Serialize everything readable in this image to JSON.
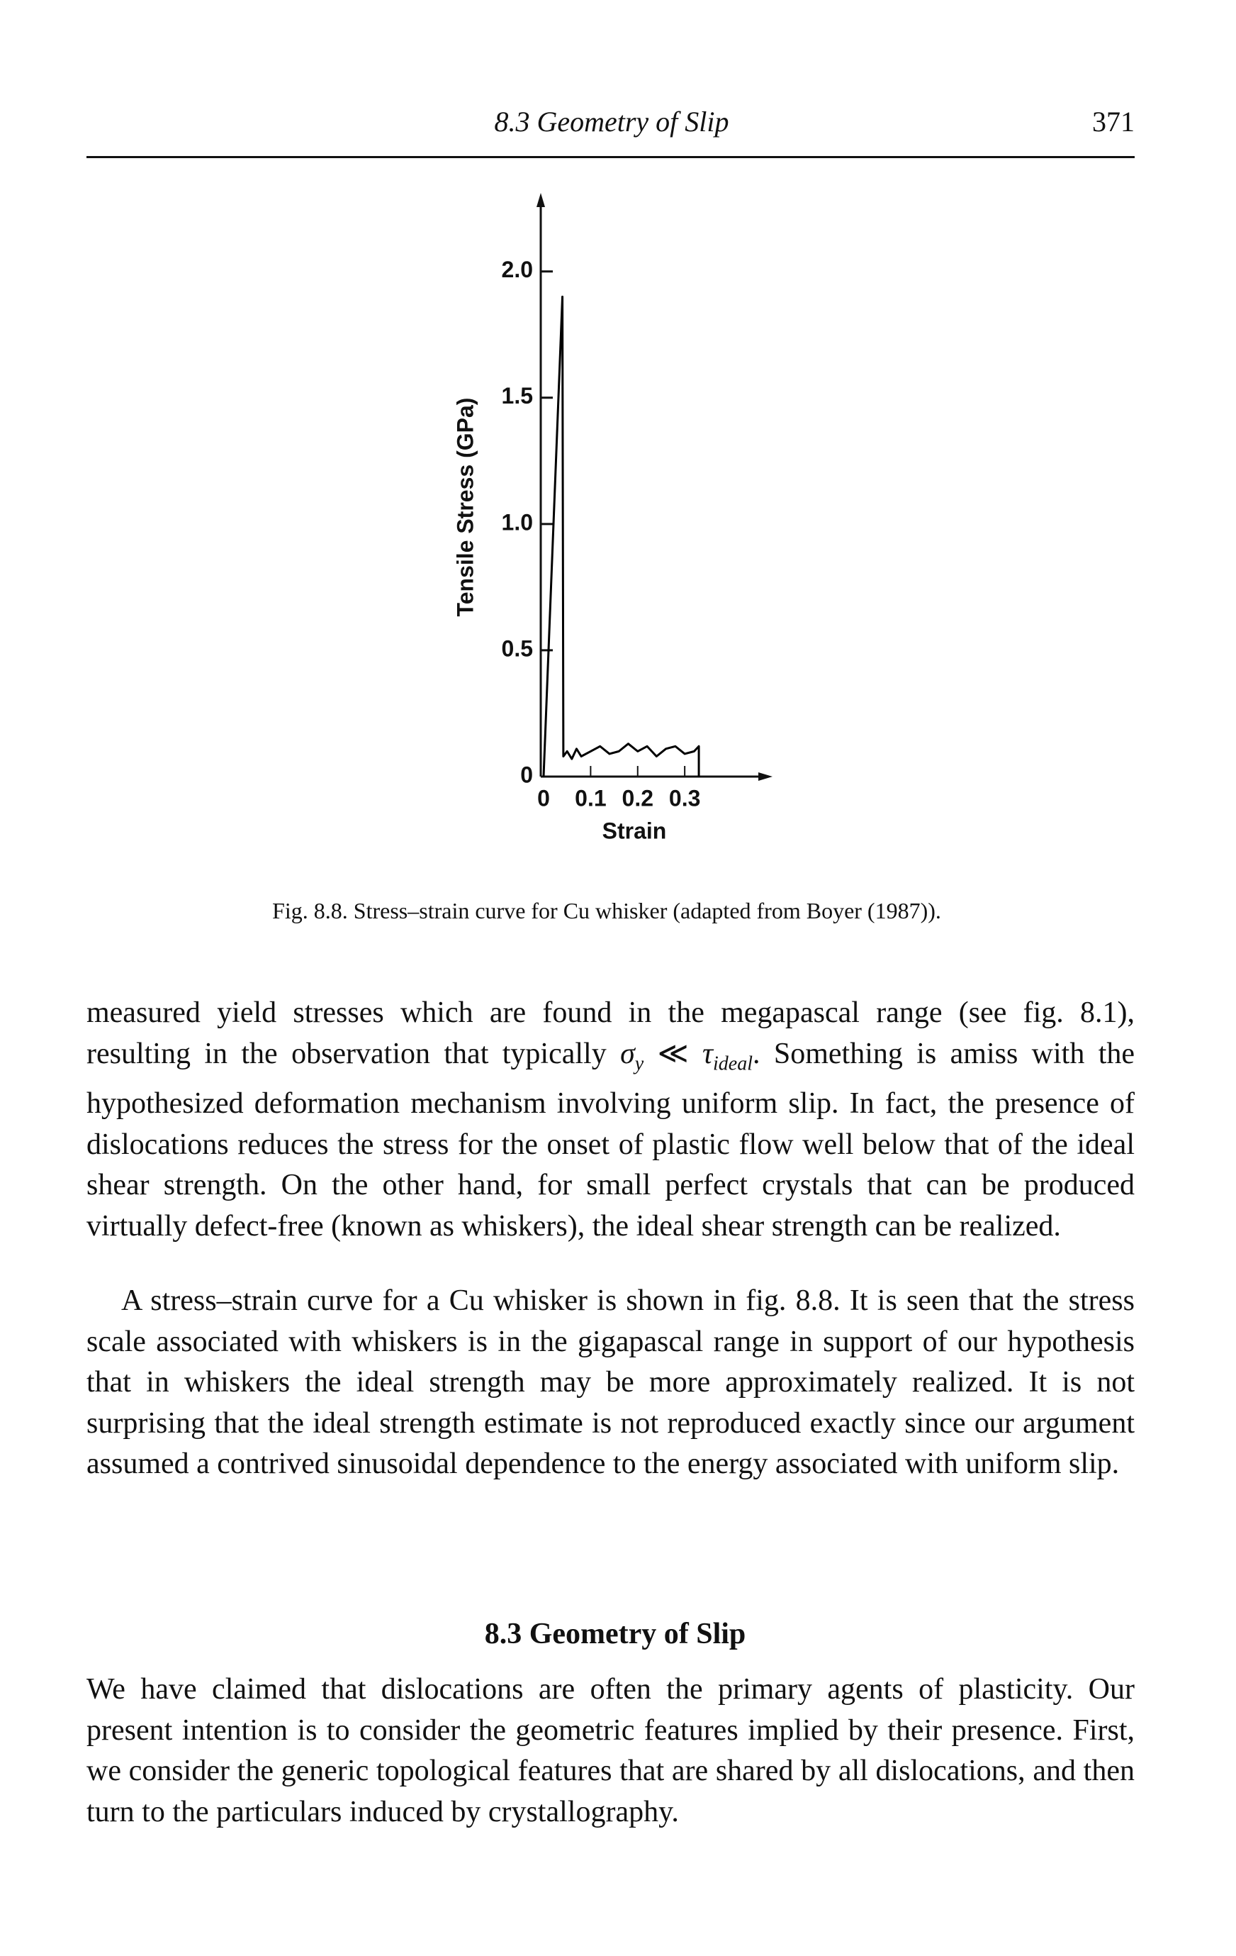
{
  "header": {
    "running_title": "8.3 Geometry of Slip",
    "page_number": "371"
  },
  "chart_data": {
    "type": "line",
    "xlabel": "Strain",
    "ylabel": "Tensile Stress (GPa)",
    "x": [
      0,
      0.04,
      0.042,
      0.05,
      0.06,
      0.07,
      0.08,
      0.1,
      0.12,
      0.14,
      0.16,
      0.18,
      0.2,
      0.22,
      0.24,
      0.26,
      0.28,
      0.3,
      0.32,
      0.33,
      0.33
    ],
    "series": [
      {
        "color": "#000000",
        "values": [
          0,
          1.9,
          0.08,
          0.1,
          0.07,
          0.11,
          0.08,
          0.1,
          0.12,
          0.09,
          0.1,
          0.13,
          0.1,
          0.12,
          0.08,
          0.11,
          0.12,
          0.09,
          0.1,
          0.12,
          0
        ]
      }
    ],
    "xlim": [
      0,
      0.47
    ],
    "ylim": [
      0,
      2.28
    ],
    "xticks": [
      0,
      0.1,
      0.2,
      0.3
    ],
    "yticks": [
      0,
      0.5,
      {
        "value": 1,
        "label": "1.0"
      },
      1.5,
      {
        "value": 2,
        "label": "2.0"
      }
    ]
  },
  "caption": "Fig. 8.8. Stress–strain curve for Cu whisker (adapted from Boyer (1987)).",
  "paragraph_1": {
    "text_1": "measured yield stresses which are found in the megapascal range (see fig. 8.1), resulting in the observation that typically ",
    "symbol_1": "σ",
    "subscript_1": "y",
    "relation": "≪",
    "symbol_2": "τ",
    "subscript_2": "ideal",
    "text_2": ". Something is amiss with the hypothesized deformation mechanism involving uniform slip. In fact, the presence of dislocations reduces the stress for the onset of plastic flow well below that of the ideal shear strength. On the other hand, for small perfect crystals that can be produced virtually defect-free (known as whiskers), the ideal shear strength can be realized."
  },
  "paragraph_2": "A stress–strain curve for a Cu whisker is shown in fig. 8.8. It is seen that the stress scale associated with whiskers is in the gigapascal range in support of our hypothesis that in whiskers the ideal strength may be more approximately realized. It is not surprising that the ideal strength estimate is not reproduced exactly since our argument assumed a contrived sinusoidal dependence to the energy associated with uniform slip.",
  "section_heading": "8.3 Geometry of Slip",
  "paragraph_3": "We have claimed that dislocations are often the primary agents of plasticity. Our present intention is to consider the geometric features implied by their presence. First, we consider the generic topological features that are shared by all dislocations, and then turn to the particulars induced by crystallography."
}
